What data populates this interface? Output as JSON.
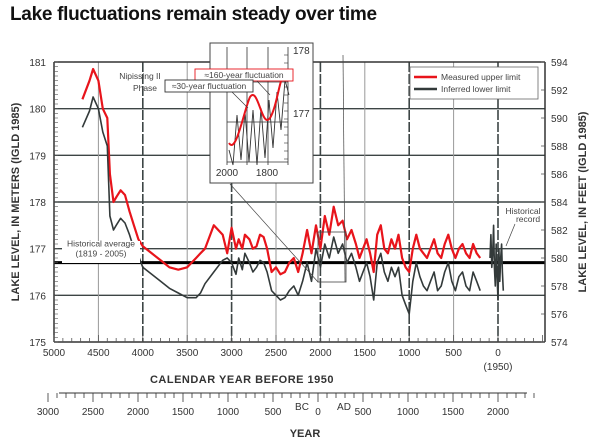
{
  "title": "Lake fluctuations remain steady over time",
  "chart_data": {
    "type": "line",
    "title": "Lake fluctuations remain steady over time",
    "xlabel": "CALENDAR YEAR BEFORE 1950",
    "x2label": "YEAR",
    "ylabel": "LAKE LEVEL, IN METERS (IGLD 1985)",
    "y2label": "LAKE LEVEL, IN FEET (IGLD 1985)",
    "xlim": [
      5000,
      -530
    ],
    "ylim": [
      175,
      181
    ],
    "y2lim": [
      574,
      594
    ],
    "x_ticks": [
      "5000",
      "4500",
      "4000",
      "3500",
      "3000",
      "2500",
      "2000",
      "1500",
      "1000",
      "500",
      "0"
    ],
    "x_ticks_values": [
      5000,
      4500,
      4000,
      3500,
      3000,
      2500,
      2000,
      1500,
      1000,
      500,
      0
    ],
    "x_zero_note": "(1950)",
    "y_ticks": [
      "175",
      "176",
      "177",
      "178",
      "179",
      "180",
      "181"
    ],
    "y2_ticks": [
      "574",
      "576",
      "578",
      "580",
      "582",
      "584",
      "586",
      "588",
      "590",
      "592",
      "594"
    ],
    "x2_ticks": [
      "3000",
      "2500",
      "2000",
      "1500",
      "1000",
      "500",
      "0",
      "500",
      "1000",
      "1500",
      "2000"
    ],
    "x2_bc_label": "BC",
    "x2_ad_label": "AD",
    "grid": true,
    "legend": {
      "position": "top-right",
      "entries": [
        {
          "name": "Measured upper limit",
          "color": "#e8141b"
        },
        {
          "name": "Inferred lower limit",
          "color": "#333a3a"
        }
      ]
    },
    "series": [
      {
        "name": "Measured upper limit",
        "color": "#e8141b",
        "x": [
          4680,
          4600,
          4560,
          4500,
          4450,
          4400,
          4370,
          4330,
          4300,
          4250,
          4200,
          4150,
          4100,
          4050,
          4000,
          3900,
          3800,
          3700,
          3600,
          3500,
          3400,
          3350,
          3300,
          3200,
          3100,
          3050,
          3000,
          2950,
          2920,
          2880,
          2850,
          2800,
          2760,
          2720,
          2680,
          2640,
          2600,
          2550,
          2500,
          2450,
          2400,
          2350,
          2300,
          2250,
          2200,
          2150,
          2100,
          2050,
          2000,
          1950,
          1900,
          1850,
          1800,
          1750,
          1700,
          1650,
          1600,
          1560,
          1520,
          1480,
          1440,
          1400,
          1360,
          1320,
          1280,
          1240,
          1200,
          1160,
          1120,
          1080,
          1040,
          1000,
          960,
          920,
          880,
          840,
          800,
          760,
          720,
          680,
          640,
          600,
          560,
          520,
          480,
          440,
          400,
          360,
          320,
          280,
          240,
          200
        ],
        "values": [
          180.2,
          180.6,
          180.85,
          180.6,
          180.0,
          179.8,
          178.6,
          178.0,
          178.1,
          178.25,
          178.15,
          177.8,
          177.5,
          177.2,
          177.05,
          176.9,
          176.75,
          176.6,
          176.55,
          176.6,
          176.8,
          176.9,
          177.0,
          177.5,
          177.3,
          176.9,
          177.45,
          177.0,
          177.2,
          177.0,
          177.3,
          177.2,
          177.0,
          177.05,
          177.3,
          177.25,
          177.0,
          176.5,
          176.6,
          176.45,
          176.5,
          176.7,
          176.8,
          176.5,
          176.9,
          177.4,
          176.9,
          177.5,
          177.0,
          177.7,
          177.3,
          177.9,
          177.5,
          177.6,
          177.2,
          177.4,
          177.1,
          176.8,
          177.0,
          177.2,
          176.9,
          176.5,
          177.3,
          177.5,
          177.0,
          176.9,
          177.2,
          177.0,
          177.3,
          176.8,
          176.6,
          176.5,
          177.0,
          177.3,
          177.0,
          176.9,
          176.8,
          177.0,
          177.2,
          176.9,
          176.8,
          177.1,
          177.3,
          177.0,
          176.8,
          177.0,
          177.1,
          176.9,
          176.8,
          177.1,
          176.9,
          176.8
        ]
      },
      {
        "name": "Inferred lower limit",
        "color": "#333a3a",
        "x": [
          4680,
          4600,
          4560,
          4500,
          4450,
          4400,
          4370,
          4330,
          4300,
          4250,
          4200,
          4150,
          4100,
          4050,
          4000,
          3900,
          3800,
          3700,
          3600,
          3500,
          3400,
          3350,
          3300,
          3200,
          3100,
          3050,
          3000,
          2950,
          2920,
          2880,
          2850,
          2800,
          2760,
          2720,
          2680,
          2640,
          2600,
          2550,
          2500,
          2450,
          2400,
          2350,
          2300,
          2250,
          2200,
          2150,
          2100,
          2050,
          2000,
          1950,
          1900,
          1850,
          1800,
          1750,
          1700,
          1650,
          1600,
          1560,
          1520,
          1480,
          1440,
          1400,
          1360,
          1320,
          1280,
          1240,
          1200,
          1160,
          1120,
          1080,
          1040,
          1000,
          960,
          920,
          880,
          840,
          800,
          760,
          720,
          680,
          640,
          600,
          560,
          520,
          480,
          440,
          400,
          360,
          320,
          280,
          240,
          200
        ],
        "values": [
          179.6,
          179.95,
          180.25,
          180.0,
          179.5,
          179.2,
          177.7,
          177.4,
          177.5,
          177.65,
          177.55,
          177.3,
          177.0,
          176.85,
          176.6,
          176.45,
          176.3,
          176.15,
          176.05,
          175.95,
          175.95,
          176.05,
          176.25,
          176.5,
          176.75,
          176.8,
          176.7,
          176.45,
          176.8,
          176.55,
          176.9,
          176.7,
          176.5,
          176.6,
          176.75,
          176.7,
          176.5,
          176.1,
          176.0,
          175.9,
          175.95,
          176.1,
          176.2,
          176.0,
          176.3,
          176.7,
          176.3,
          177.0,
          176.6,
          177.1,
          176.8,
          177.25,
          176.9,
          177.1,
          176.7,
          176.9,
          176.6,
          176.3,
          176.5,
          176.7,
          176.4,
          175.9,
          176.7,
          176.9,
          176.5,
          176.3,
          176.6,
          176.4,
          176.6,
          176.0,
          175.8,
          175.6,
          176.3,
          176.7,
          176.4,
          176.2,
          176.1,
          176.3,
          176.5,
          176.1,
          176.2,
          176.5,
          176.7,
          176.3,
          176.1,
          176.4,
          176.5,
          176.2,
          176.1,
          176.5,
          176.3,
          176.1
        ]
      },
      {
        "name": "Historical record",
        "color": "#333a3a",
        "x": [
          90,
          80,
          70,
          60,
          50,
          40,
          30,
          20,
          10,
          0,
          -10,
          -20,
          -30,
          -40,
          -50,
          -60
        ],
        "values": [
          176.8,
          177.3,
          176.6,
          176.9,
          177.5,
          176.6,
          176.2,
          177.1,
          176.4,
          175.9,
          177.0,
          176.3,
          176.8,
          177.1,
          176.5,
          176.1
        ]
      }
    ],
    "reference_line": {
      "label": "Historical average",
      "label2": "(1819 - 2005)",
      "value": 176.7
    },
    "annotations": [
      {
        "text": "Nipissing II",
        "text2": "Phase"
      },
      {
        "text": "Historical",
        "text2": "record"
      },
      {
        "text": "≈160-year fluctuation",
        "color": "#e8141b"
      },
      {
        "text": "≈30-year fluctuation",
        "color": "#333333"
      }
    ],
    "inset": {
      "x_ticks": [
        "2000",
        "1800"
      ],
      "y_ticks": [
        "178",
        "177"
      ],
      "series": [
        {
          "name": "≈160-year fluctuation",
          "color": "#e8141b"
        },
        {
          "name": "≈30-year fluctuation",
          "color": "#333333"
        }
      ]
    }
  }
}
